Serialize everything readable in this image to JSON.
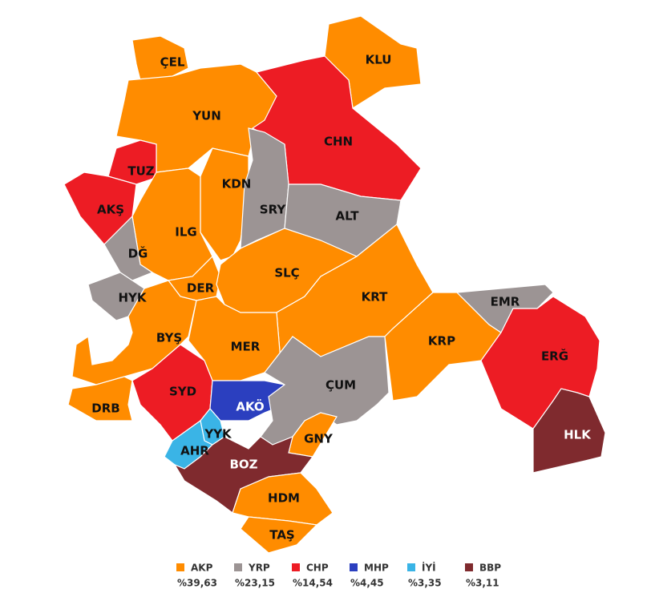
{
  "legend": [
    {
      "party": "AKP",
      "color": "#ff8c00",
      "share": "%39,63"
    },
    {
      "party": "YRP",
      "color": "#9c9494",
      "share": "%23,15"
    },
    {
      "party": "CHP",
      "color": "#ed1c24",
      "share": "%14,54"
    },
    {
      "party": "MHP",
      "color": "#2b3fbf",
      "share": "%4,45"
    },
    {
      "party": "İYİ",
      "color": "#3ab4e6",
      "share": "%3,35"
    },
    {
      "party": "BBP",
      "color": "#7f2a2e",
      "share": "%3,11"
    }
  ],
  "districts": [
    {
      "label": "ÇEL",
      "party": "AKP"
    },
    {
      "label": "KLU",
      "party": "AKP"
    },
    {
      "label": "YUN",
      "party": "AKP"
    },
    {
      "label": "CHN",
      "party": "CHP"
    },
    {
      "label": "TUZ",
      "party": "CHP"
    },
    {
      "label": "AKŞ",
      "party": "CHP"
    },
    {
      "label": "KDN",
      "party": "AKP"
    },
    {
      "label": "SRY",
      "party": "YRP"
    },
    {
      "label": "ALT",
      "party": "YRP"
    },
    {
      "label": "ILG",
      "party": "AKP"
    },
    {
      "label": "DĞ",
      "party": "YRP"
    },
    {
      "label": "HYK",
      "party": "YRP"
    },
    {
      "label": "DER",
      "party": "AKP"
    },
    {
      "label": "SLÇ",
      "party": "AKP"
    },
    {
      "label": "KRT",
      "party": "AKP"
    },
    {
      "label": "BYŞ",
      "party": "AKP"
    },
    {
      "label": "MER",
      "party": "AKP"
    },
    {
      "label": "SYD",
      "party": "CHP"
    },
    {
      "label": "DRB",
      "party": "AKP"
    },
    {
      "label": "AKÖ",
      "party": "MHP"
    },
    {
      "label": "ÇUM",
      "party": "YRP"
    },
    {
      "label": "KRP",
      "party": "AKP"
    },
    {
      "label": "EMR",
      "party": "YRP"
    },
    {
      "label": "ERĞ",
      "party": "CHP"
    },
    {
      "label": "HLK",
      "party": "BBP"
    },
    {
      "label": "GNY",
      "party": "AKP"
    },
    {
      "label": "YYK",
      "party": "İYİ"
    },
    {
      "label": "AHR",
      "party": "İYİ"
    },
    {
      "label": "BOZ",
      "party": "BBP"
    },
    {
      "label": "HDM",
      "party": "AKP"
    },
    {
      "label": "TAŞ",
      "party": "AKP"
    }
  ]
}
